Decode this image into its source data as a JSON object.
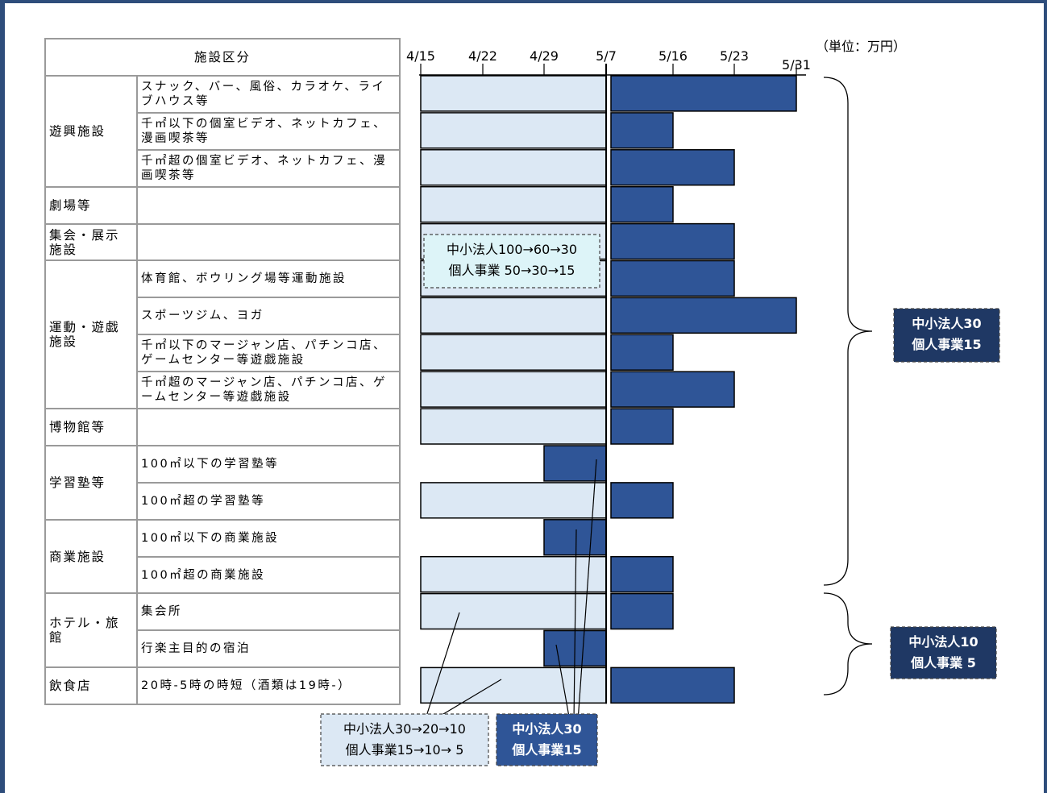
{
  "table": {
    "header": "施設区分",
    "rows": [
      {
        "category": "遊興施設",
        "rowspan": 3,
        "sub": "スナック、バー、風俗、カラオケ、ライブハウス等"
      },
      {
        "sub": "千㎡以下の個室ビデオ、ネットカフェ、漫画喫茶等"
      },
      {
        "sub": "千㎡超の個室ビデオ、ネットカフェ、漫画喫茶等"
      },
      {
        "category": "劇場等",
        "rowspan": 1,
        "sub": ""
      },
      {
        "category": "集会・展示施設",
        "rowspan": 1,
        "sub": ""
      },
      {
        "category": "運動・遊戯施設",
        "rowspan": 4,
        "sub": "体育館、ボウリング場等運動施設"
      },
      {
        "sub": "スポーツジム、ヨガ"
      },
      {
        "sub": "千㎡以下のマージャン店、パチンコ店、ゲームセンター等遊戯施設"
      },
      {
        "sub": "千㎡超のマージャン店、パチンコ店、ゲームセンター等遊戯施設"
      },
      {
        "category": "博物館等",
        "rowspan": 1,
        "sub": ""
      },
      {
        "category": "学習塾等",
        "rowspan": 2,
        "sub": "100㎡以下の学習塾等"
      },
      {
        "sub": "100㎡超の学習塾等"
      },
      {
        "category": "商業施設",
        "rowspan": 2,
        "sub": "100㎡以下の商業施設"
      },
      {
        "sub": "100㎡超の商業施設"
      },
      {
        "category": "ホテル・旅館",
        "rowspan": 2,
        "sub": "集会所"
      },
      {
        "sub": "行楽主目的の宿泊"
      },
      {
        "category": "飲食店",
        "rowspan": 1,
        "sub": "20時-5時の時短（酒類は19時-）"
      }
    ]
  },
  "chart_data": {
    "type": "bar",
    "unit_label": "（単位：万円）",
    "date_ticks": [
      "4/15",
      "4/22",
      "4/29",
      "5/7",
      "5/16",
      "5/23",
      "5/31"
    ],
    "bars": [
      {
        "phase1": [
          "4/15",
          "5/7"
        ],
        "phase1_style": "light",
        "phase2": [
          "5/7",
          "5/31"
        ]
      },
      {
        "phase1": [
          "4/15",
          "5/7"
        ],
        "phase1_style": "light",
        "phase2": [
          "5/7",
          "5/16"
        ]
      },
      {
        "phase1": [
          "4/15",
          "5/7"
        ],
        "phase1_style": "light",
        "phase2": [
          "5/7",
          "5/23"
        ]
      },
      {
        "phase1": [
          "4/15",
          "5/7"
        ],
        "phase1_style": "light",
        "phase2": [
          "5/7",
          "5/16"
        ]
      },
      {
        "phase1": [
          "4/15",
          "5/7"
        ],
        "phase1_style": "light",
        "phase2": [
          "5/7",
          "5/23"
        ]
      },
      {
        "phase1": [
          "4/15",
          "5/7"
        ],
        "phase1_style": "light",
        "phase2": [
          "5/7",
          "5/23"
        ]
      },
      {
        "phase1": [
          "4/15",
          "5/7"
        ],
        "phase1_style": "light",
        "phase2": [
          "5/7",
          "5/31"
        ]
      },
      {
        "phase1": [
          "4/15",
          "5/7"
        ],
        "phase1_style": "light",
        "phase2": [
          "5/7",
          "5/16"
        ]
      },
      {
        "phase1": [
          "4/15",
          "5/7"
        ],
        "phase1_style": "light",
        "phase2": [
          "5/7",
          "5/23"
        ]
      },
      {
        "phase1": [
          "4/15",
          "5/7"
        ],
        "phase1_style": "light",
        "phase2": [
          "5/7",
          "5/16"
        ]
      },
      {
        "phase1": [
          "4/29",
          "5/7"
        ],
        "phase1_style": "dark",
        "phase2": null
      },
      {
        "phase1": [
          "4/15",
          "5/7"
        ],
        "phase1_style": "light",
        "phase2": [
          "5/7",
          "5/16"
        ]
      },
      {
        "phase1": [
          "4/29",
          "5/7"
        ],
        "phase1_style": "dark",
        "phase2": null
      },
      {
        "phase1": [
          "4/15",
          "5/7"
        ],
        "phase1_style": "light",
        "phase2": [
          "5/7",
          "5/16"
        ]
      },
      {
        "phase1": [
          "4/15",
          "5/7"
        ],
        "phase1_style": "light",
        "phase2": [
          "5/7",
          "5/16"
        ]
      },
      {
        "phase1": [
          "4/29",
          "5/7"
        ],
        "phase1_style": "dark",
        "phase2": null
      },
      {
        "phase1": [
          "4/15",
          "5/7"
        ],
        "phase1_style": "light",
        "phase2": [
          "5/7",
          "5/23"
        ]
      }
    ],
    "annotations": {
      "light_mid": [
        "中小法人100→60→30",
        "個人事業 50→30→15"
      ],
      "light_bottom": [
        "中小法人30→20→10",
        "個人事業15→10→ 5"
      ],
      "dark_bottom": [
        "中小法人30",
        "個人事業15"
      ],
      "brace_upper": [
        "中小法人30",
        "個人事業15"
      ],
      "brace_lower": [
        "中小法人10",
        "個人事業 5"
      ]
    },
    "colors": {
      "light": "#dce8f4",
      "dark": "#2f5597",
      "note_light": "#ddf4f8",
      "note_navy": "#1f3864"
    }
  }
}
